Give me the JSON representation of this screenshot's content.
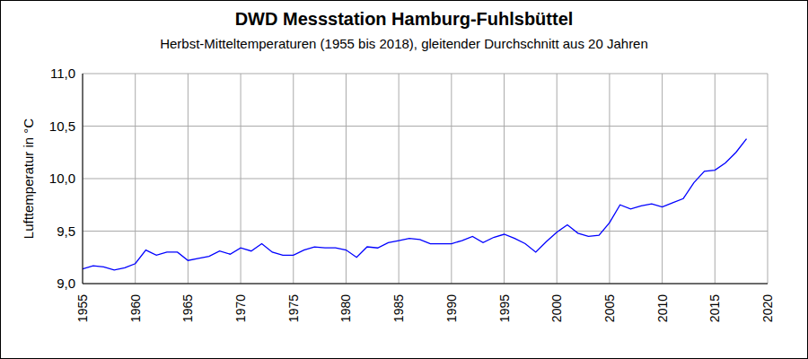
{
  "chart_data": {
    "type": "line",
    "title": "DWD Messstation Hamburg-Fuhlsbüttel",
    "subtitle": "Herbst-Mitteltemperaturen (1955 bis 2018), gleitender Durchschnitt aus 20 Jahren",
    "y_label": "Lufttemperatur in °C",
    "x": [
      1955,
      1956,
      1957,
      1958,
      1959,
      1960,
      1961,
      1962,
      1963,
      1964,
      1965,
      1966,
      1967,
      1968,
      1969,
      1970,
      1971,
      1972,
      1973,
      1974,
      1975,
      1976,
      1977,
      1978,
      1979,
      1980,
      1981,
      1982,
      1983,
      1984,
      1985,
      1986,
      1987,
      1988,
      1989,
      1990,
      1991,
      1992,
      1993,
      1994,
      1995,
      1996,
      1997,
      1998,
      1999,
      2000,
      2001,
      2002,
      2003,
      2004,
      2005,
      2006,
      2007,
      2008,
      2009,
      2010,
      2011,
      2012,
      2013,
      2014,
      2015,
      2016,
      2017,
      2018
    ],
    "values": [
      9.14,
      9.17,
      9.16,
      9.13,
      9.15,
      9.19,
      9.32,
      9.27,
      9.3,
      9.3,
      9.22,
      9.24,
      9.26,
      9.31,
      9.28,
      9.34,
      9.31,
      9.38,
      9.3,
      9.27,
      9.27,
      9.32,
      9.35,
      9.34,
      9.34,
      9.32,
      9.25,
      9.35,
      9.34,
      9.39,
      9.41,
      9.43,
      9.42,
      9.38,
      9.38,
      9.38,
      9.41,
      9.45,
      9.39,
      9.44,
      9.47,
      9.43,
      9.38,
      9.3,
      9.4,
      9.49,
      9.56,
      9.48,
      9.45,
      9.46,
      9.58,
      9.75,
      9.71,
      9.74,
      9.76,
      9.73,
      9.77,
      9.81,
      9.96,
      10.07,
      10.08,
      10.15,
      10.25,
      10.38
    ],
    "color": "#0000ff",
    "xlim": [
      1955,
      2020
    ],
    "xticks": [
      1955,
      1960,
      1965,
      1970,
      1975,
      1980,
      1985,
      1990,
      1995,
      2000,
      2005,
      2010,
      2015,
      2020
    ],
    "ylim": [
      9,
      11
    ],
    "yticks": [
      {
        "value": 9,
        "label": "9,0"
      },
      {
        "value": 9.5,
        "label": "9,5"
      },
      {
        "value": 10,
        "label": "10,0"
      },
      {
        "value": 10.5,
        "label": "10,5"
      },
      {
        "value": 11,
        "label": "11,0"
      }
    ],
    "grid": true
  }
}
